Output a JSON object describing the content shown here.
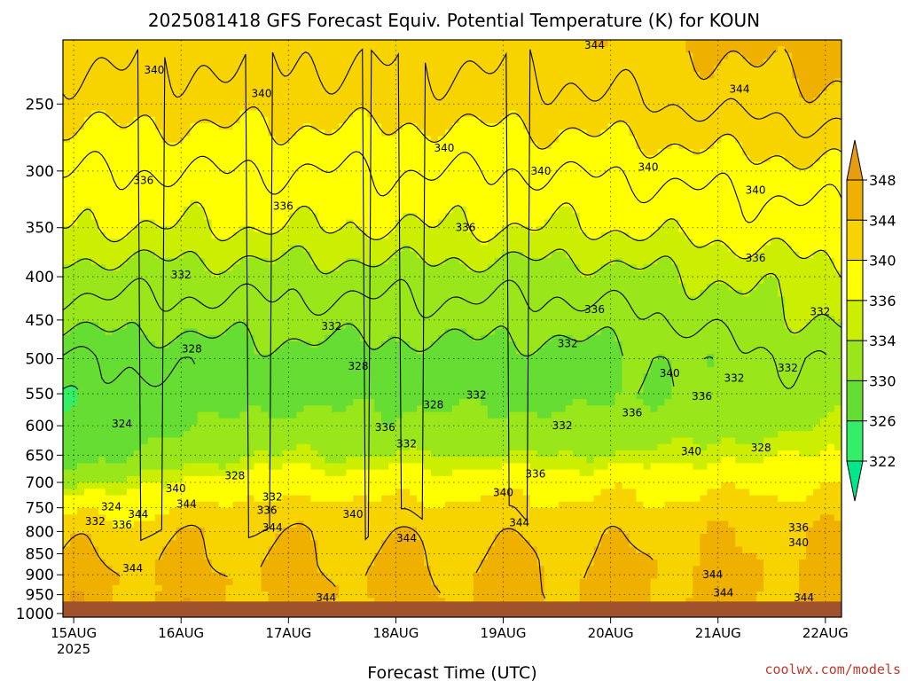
{
  "chart_data": {
    "type": "heatmap",
    "title": "2025081418 GFS Forecast Equiv. Potential Temperature (K) for KOUN",
    "xlabel": "Forecast Time (UTC)",
    "ylabel": "",
    "x_ticks": [
      {
        "label": "15AUG",
        "sub": "2025",
        "day": 0
      },
      {
        "label": "16AUG",
        "sub": "",
        "day": 1
      },
      {
        "label": "17AUG",
        "sub": "",
        "day": 2
      },
      {
        "label": "18AUG",
        "sub": "",
        "day": 3
      },
      {
        "label": "19AUG",
        "sub": "",
        "day": 4
      },
      {
        "label": "20AUG",
        "sub": "",
        "day": 5
      },
      {
        "label": "21AUG",
        "sub": "",
        "day": 6
      },
      {
        "label": "22AUG",
        "sub": "",
        "day": 7
      }
    ],
    "xlim": [
      -0.1,
      7.15
    ],
    "y_ticks": [
      250,
      300,
      350,
      400,
      450,
      500,
      550,
      600,
      650,
      700,
      750,
      800,
      850,
      900,
      950,
      1000
    ],
    "ylim": [
      1010,
      210
    ],
    "y_scale": "log",
    "ground_pressure": 968,
    "colorbar": {
      "levels": [
        322,
        326,
        330,
        334,
        336,
        340,
        344,
        348
      ],
      "colors": [
        "#00e88c",
        "#33ee66",
        "#66dd33",
        "#99e61a",
        "#ccee00",
        "#ffff00",
        "#f7d400",
        "#f0b000",
        "#e89c10"
      ]
    },
    "ground_color": "#a0522d",
    "profile": [
      {
        "p": 250,
        "theta": 341
      },
      {
        "p": 300,
        "theta": 338
      },
      {
        "p": 350,
        "theta": 336
      },
      {
        "p": 400,
        "theta": 333
      },
      {
        "p": 450,
        "theta": 331
      },
      {
        "p": 500,
        "theta": 329
      },
      {
        "p": 550,
        "theta": 329
      },
      {
        "p": 600,
        "theta": 331
      },
      {
        "p": 650,
        "theta": 334
      },
      {
        "p": 700,
        "theta": 338
      },
      {
        "p": 750,
        "theta": 341
      },
      {
        "p": 800,
        "theta": 343
      },
      {
        "p": 850,
        "theta": 344
      },
      {
        "p": 900,
        "theta": 345
      },
      {
        "p": 950,
        "theta": 345
      }
    ],
    "contour_labels": [
      {
        "text": "344",
        "day": 4.85,
        "p": 213
      },
      {
        "text": "340",
        "day": 0.75,
        "p": 228
      },
      {
        "text": "340",
        "day": 1.75,
        "p": 243
      },
      {
        "text": "344",
        "day": 6.2,
        "p": 240
      },
      {
        "text": "340",
        "day": 3.45,
        "p": 282
      },
      {
        "text": "340",
        "day": 4.35,
        "p": 300
      },
      {
        "text": "340",
        "day": 5.35,
        "p": 297
      },
      {
        "text": "340",
        "day": 6.35,
        "p": 316
      },
      {
        "text": "336",
        "day": 0.65,
        "p": 308
      },
      {
        "text": "336",
        "day": 1.95,
        "p": 330
      },
      {
        "text": "336",
        "day": 3.65,
        "p": 350
      },
      {
        "text": "336",
        "day": 6.35,
        "p": 380
      },
      {
        "text": "332",
        "day": 1.0,
        "p": 398
      },
      {
        "text": "336",
        "day": 4.85,
        "p": 437
      },
      {
        "text": "332",
        "day": 2.4,
        "p": 458
      },
      {
        "text": "332",
        "day": 4.6,
        "p": 480
      },
      {
        "text": "332",
        "day": 6.95,
        "p": 440
      },
      {
        "text": "328",
        "day": 1.1,
        "p": 487
      },
      {
        "text": "328",
        "day": 2.65,
        "p": 510
      },
      {
        "text": "340",
        "day": 5.55,
        "p": 520
      },
      {
        "text": "332",
        "day": 6.15,
        "p": 527
      },
      {
        "text": "332",
        "day": 6.65,
        "p": 513
      },
      {
        "text": "332",
        "day": 3.75,
        "p": 552
      },
      {
        "text": "336",
        "day": 5.85,
        "p": 554
      },
      {
        "text": "328",
        "day": 3.35,
        "p": 567
      },
      {
        "text": "336",
        "day": 5.2,
        "p": 579
      },
      {
        "text": "324",
        "day": 0.45,
        "p": 597
      },
      {
        "text": "332",
        "day": 4.55,
        "p": 600
      },
      {
        "text": "336",
        "day": 2.9,
        "p": 603
      },
      {
        "text": "332",
        "day": 3.1,
        "p": 630
      },
      {
        "text": "340",
        "day": 5.75,
        "p": 643
      },
      {
        "text": "328",
        "day": 6.4,
        "p": 637
      },
      {
        "text": "328",
        "day": 1.5,
        "p": 687
      },
      {
        "text": "336",
        "day": 4.3,
        "p": 684
      },
      {
        "text": "340",
        "day": 0.95,
        "p": 712
      },
      {
        "text": "340",
        "day": 4.0,
        "p": 720
      },
      {
        "text": "332",
        "day": 1.85,
        "p": 728
      },
      {
        "text": "344",
        "day": 1.05,
        "p": 743
      },
      {
        "text": "324",
        "day": 0.35,
        "p": 748
      },
      {
        "text": "336",
        "day": 1.8,
        "p": 755
      },
      {
        "text": "344",
        "day": 0.6,
        "p": 763
      },
      {
        "text": "340",
        "day": 2.6,
        "p": 763
      },
      {
        "text": "332",
        "day": 0.2,
        "p": 778
      },
      {
        "text": "336",
        "day": 0.45,
        "p": 786
      },
      {
        "text": "344",
        "day": 4.15,
        "p": 781
      },
      {
        "text": "344",
        "day": 1.85,
        "p": 792
      },
      {
        "text": "336",
        "day": 6.75,
        "p": 792
      },
      {
        "text": "344",
        "day": 3.1,
        "p": 815
      },
      {
        "text": "340",
        "day": 6.75,
        "p": 825
      },
      {
        "text": "344",
        "day": 0.55,
        "p": 885
      },
      {
        "text": "344",
        "day": 5.95,
        "p": 900
      },
      {
        "text": "344",
        "day": 6.05,
        "p": 945
      },
      {
        "text": "344",
        "day": 2.35,
        "p": 958
      },
      {
        "text": "344",
        "day": 6.8,
        "p": 958
      }
    ]
  },
  "credit": "coolwx.com/models"
}
